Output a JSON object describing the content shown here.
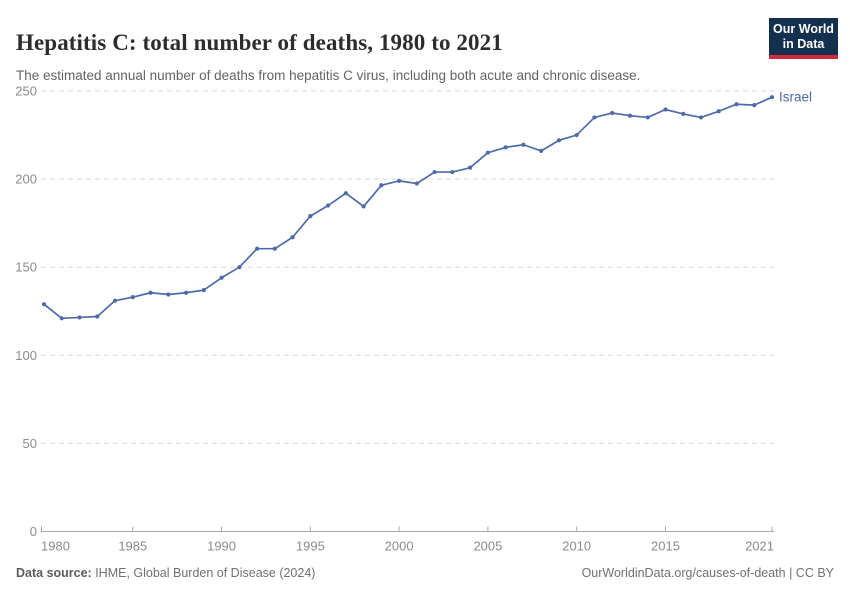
{
  "header": {
    "title": "Hepatitis C: total number of deaths, 1980 to 2021",
    "subtitle": "The estimated annual number of deaths from hepatitis C virus, including both acute and chronic disease."
  },
  "logo": {
    "line1": "Our World",
    "line2": "in Data",
    "bg_color": "#13304F",
    "accent_color": "#D0293E"
  },
  "footer": {
    "source_label": "Data source:",
    "source_text": " IHME, Global Burden of Disease (2024)",
    "right_text": "OurWorldinData.org/causes-of-death | CC BY"
  },
  "chart_data": {
    "type": "line",
    "title": "Hepatitis C: total number of deaths, 1980 to 2021",
    "x": [
      1980,
      1981,
      1982,
      1983,
      1984,
      1985,
      1986,
      1987,
      1988,
      1989,
      1990,
      1991,
      1992,
      1993,
      1994,
      1995,
      1996,
      1997,
      1998,
      1999,
      2000,
      2001,
      2002,
      2003,
      2004,
      2005,
      2006,
      2007,
      2008,
      2009,
      2010,
      2011,
      2012,
      2013,
      2014,
      2015,
      2016,
      2017,
      2018,
      2019,
      2020,
      2021
    ],
    "series": [
      {
        "name": "Israel",
        "values": [
          129,
          121,
          121.5,
          122,
          131,
          133,
          135.5,
          134.5,
          135.5,
          137,
          144,
          150,
          160.5,
          160.5,
          167,
          179,
          185,
          192,
          184.5,
          196.5,
          199,
          197.5,
          204,
          204,
          206.5,
          215,
          218,
          219.5,
          216,
          222,
          225,
          235,
          237.5,
          236,
          235,
          239.5,
          237,
          235,
          238.5,
          242.5,
          242,
          246.5
        ]
      }
    ],
    "xlabel": "",
    "ylabel": "",
    "xlim": [
      1980,
      2021
    ],
    "ylim": [
      0,
      250
    ],
    "xticks": [
      1980,
      1985,
      1990,
      1995,
      2000,
      2005,
      2010,
      2015,
      2021
    ],
    "yticks": [
      0,
      50,
      100,
      150,
      200,
      250
    ],
    "grid": "horizontal dashed",
    "legend": "label at line end",
    "colors": {
      "line": "#4C6BA8",
      "grid": "#DADADA",
      "axis": "#A8A8A8",
      "tick_text": "#8B8B8B"
    }
  }
}
